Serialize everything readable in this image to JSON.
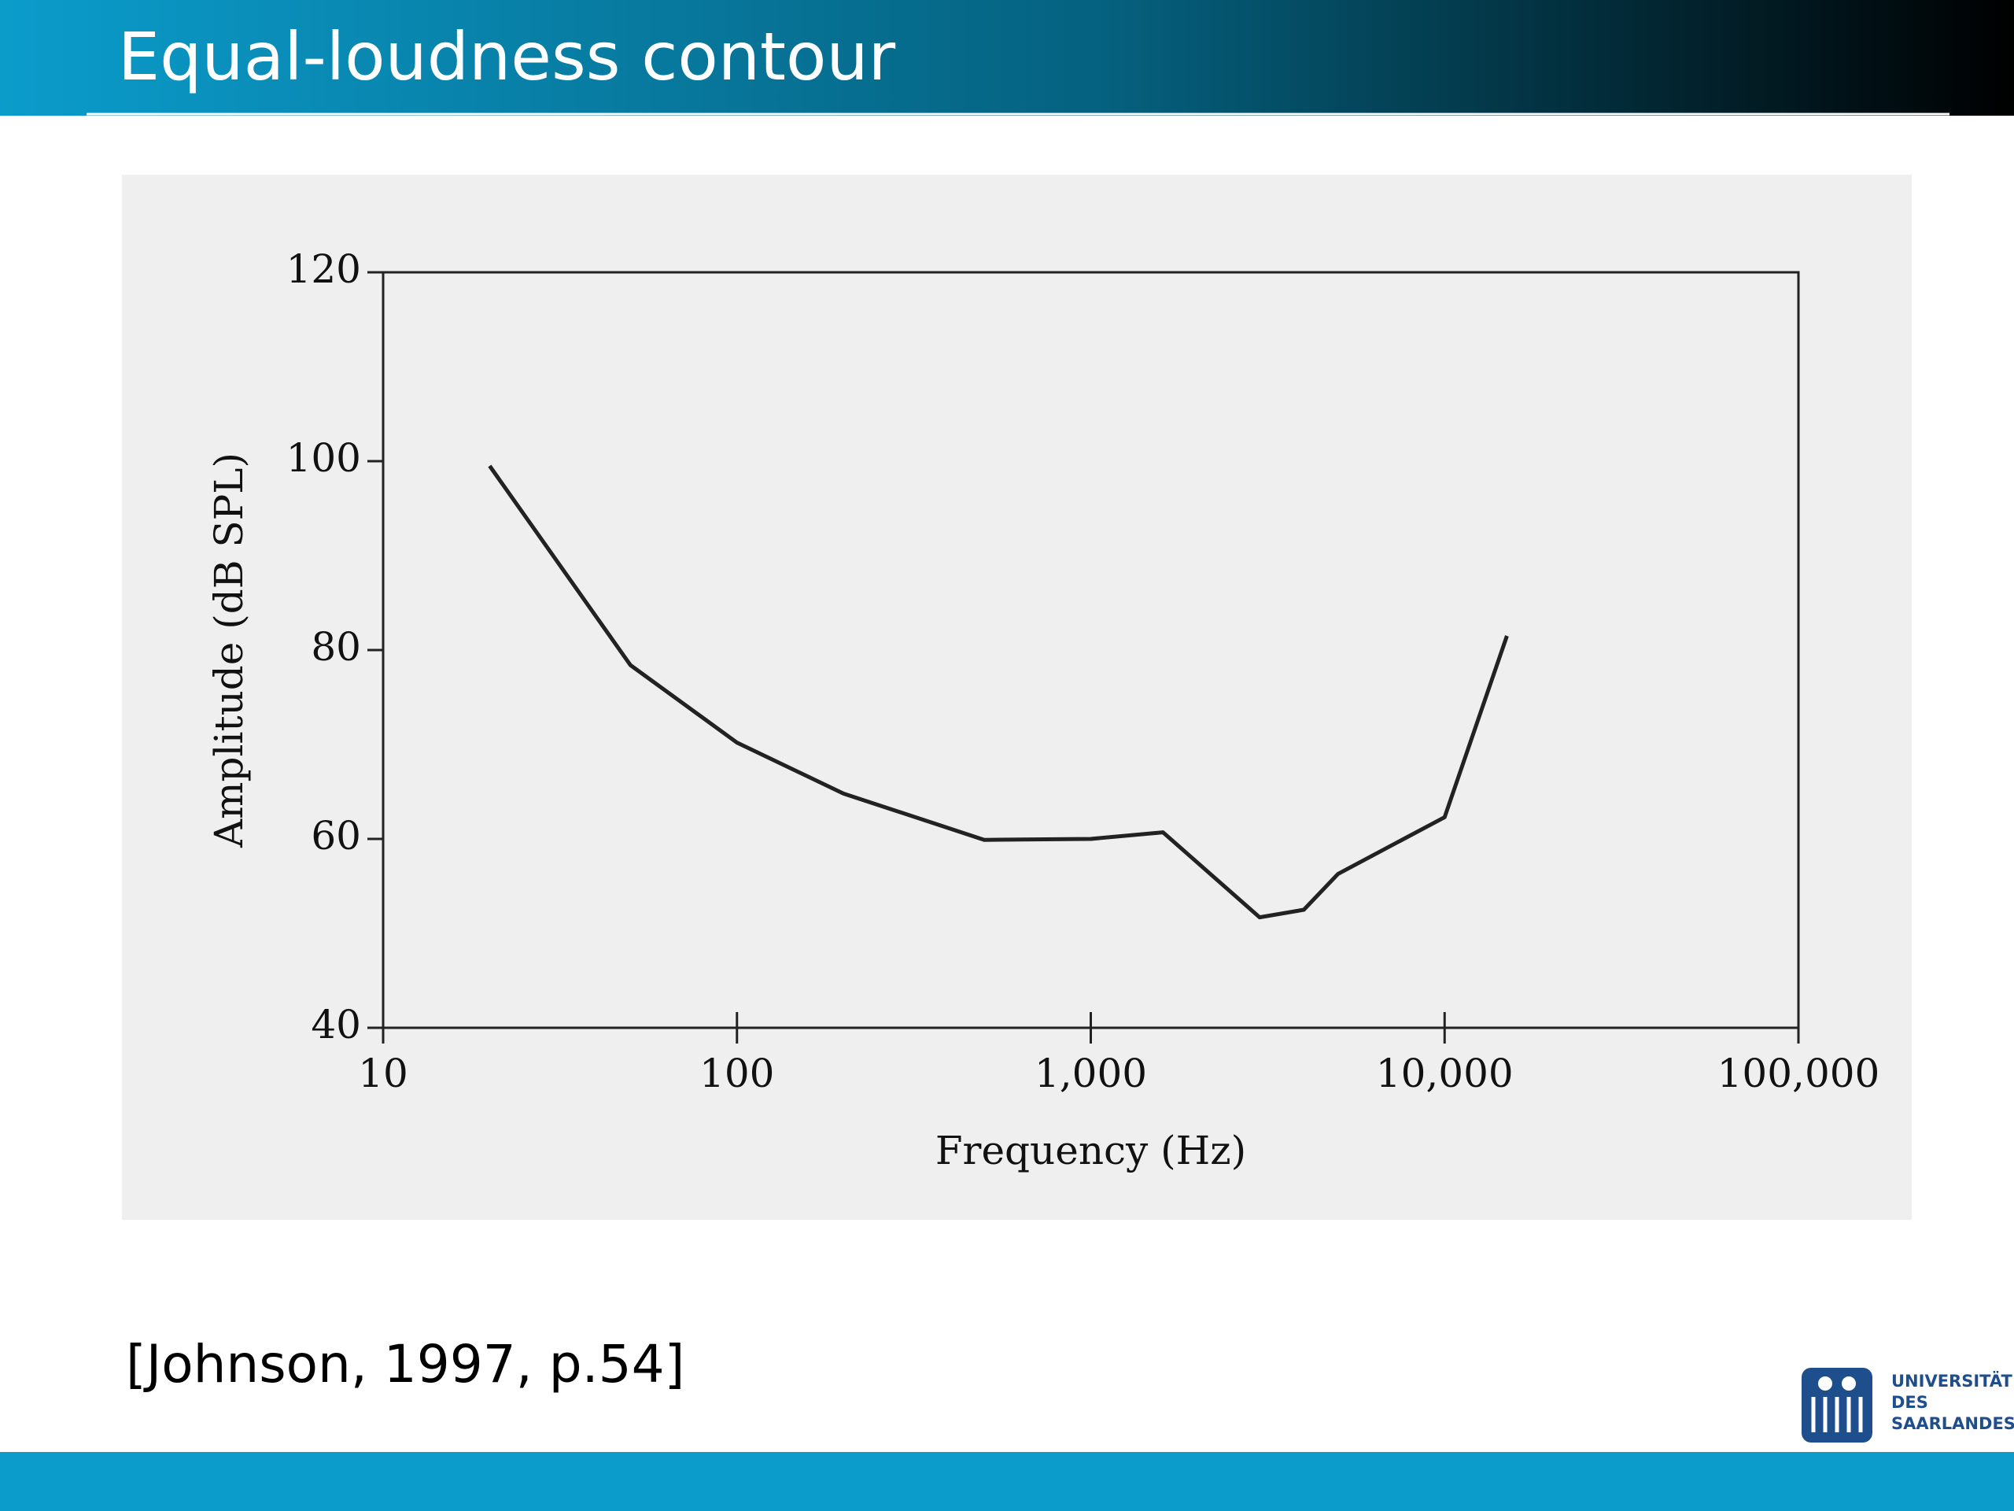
{
  "slide": {
    "title": "Equal-loudness contour",
    "citation": "[Johnson, 1997, p.54]",
    "logo": [
      "UNIVERSITÄT",
      "DES",
      "SAARLANDES"
    ]
  },
  "chart_data": {
    "type": "line",
    "x_label": "Frequency (Hz)",
    "y_label": "Amplitude (dB SPL)",
    "x": [
      20,
      50,
      100,
      200,
      500,
      1000,
      1600,
      3000,
      4000,
      5000,
      10000,
      15000
    ],
    "values": [
      99.5,
      78.4,
      70.2,
      64.8,
      59.9,
      60,
      60.7,
      51.7,
      52.5,
      56.3,
      62.3,
      81.5
    ],
    "color": "#222222",
    "x_scale": "log",
    "xlim": [
      10,
      100000
    ],
    "xticks": [
      10,
      100,
      {
        "value": 1000,
        "label": "1,000"
      },
      {
        "value": 10000,
        "label": "10,000"
      },
      {
        "value": 100000,
        "label": "100,000"
      }
    ],
    "ylim": [
      40,
      120
    ],
    "yticks": [
      40,
      60,
      80,
      100,
      120
    ],
    "grid": false
  }
}
